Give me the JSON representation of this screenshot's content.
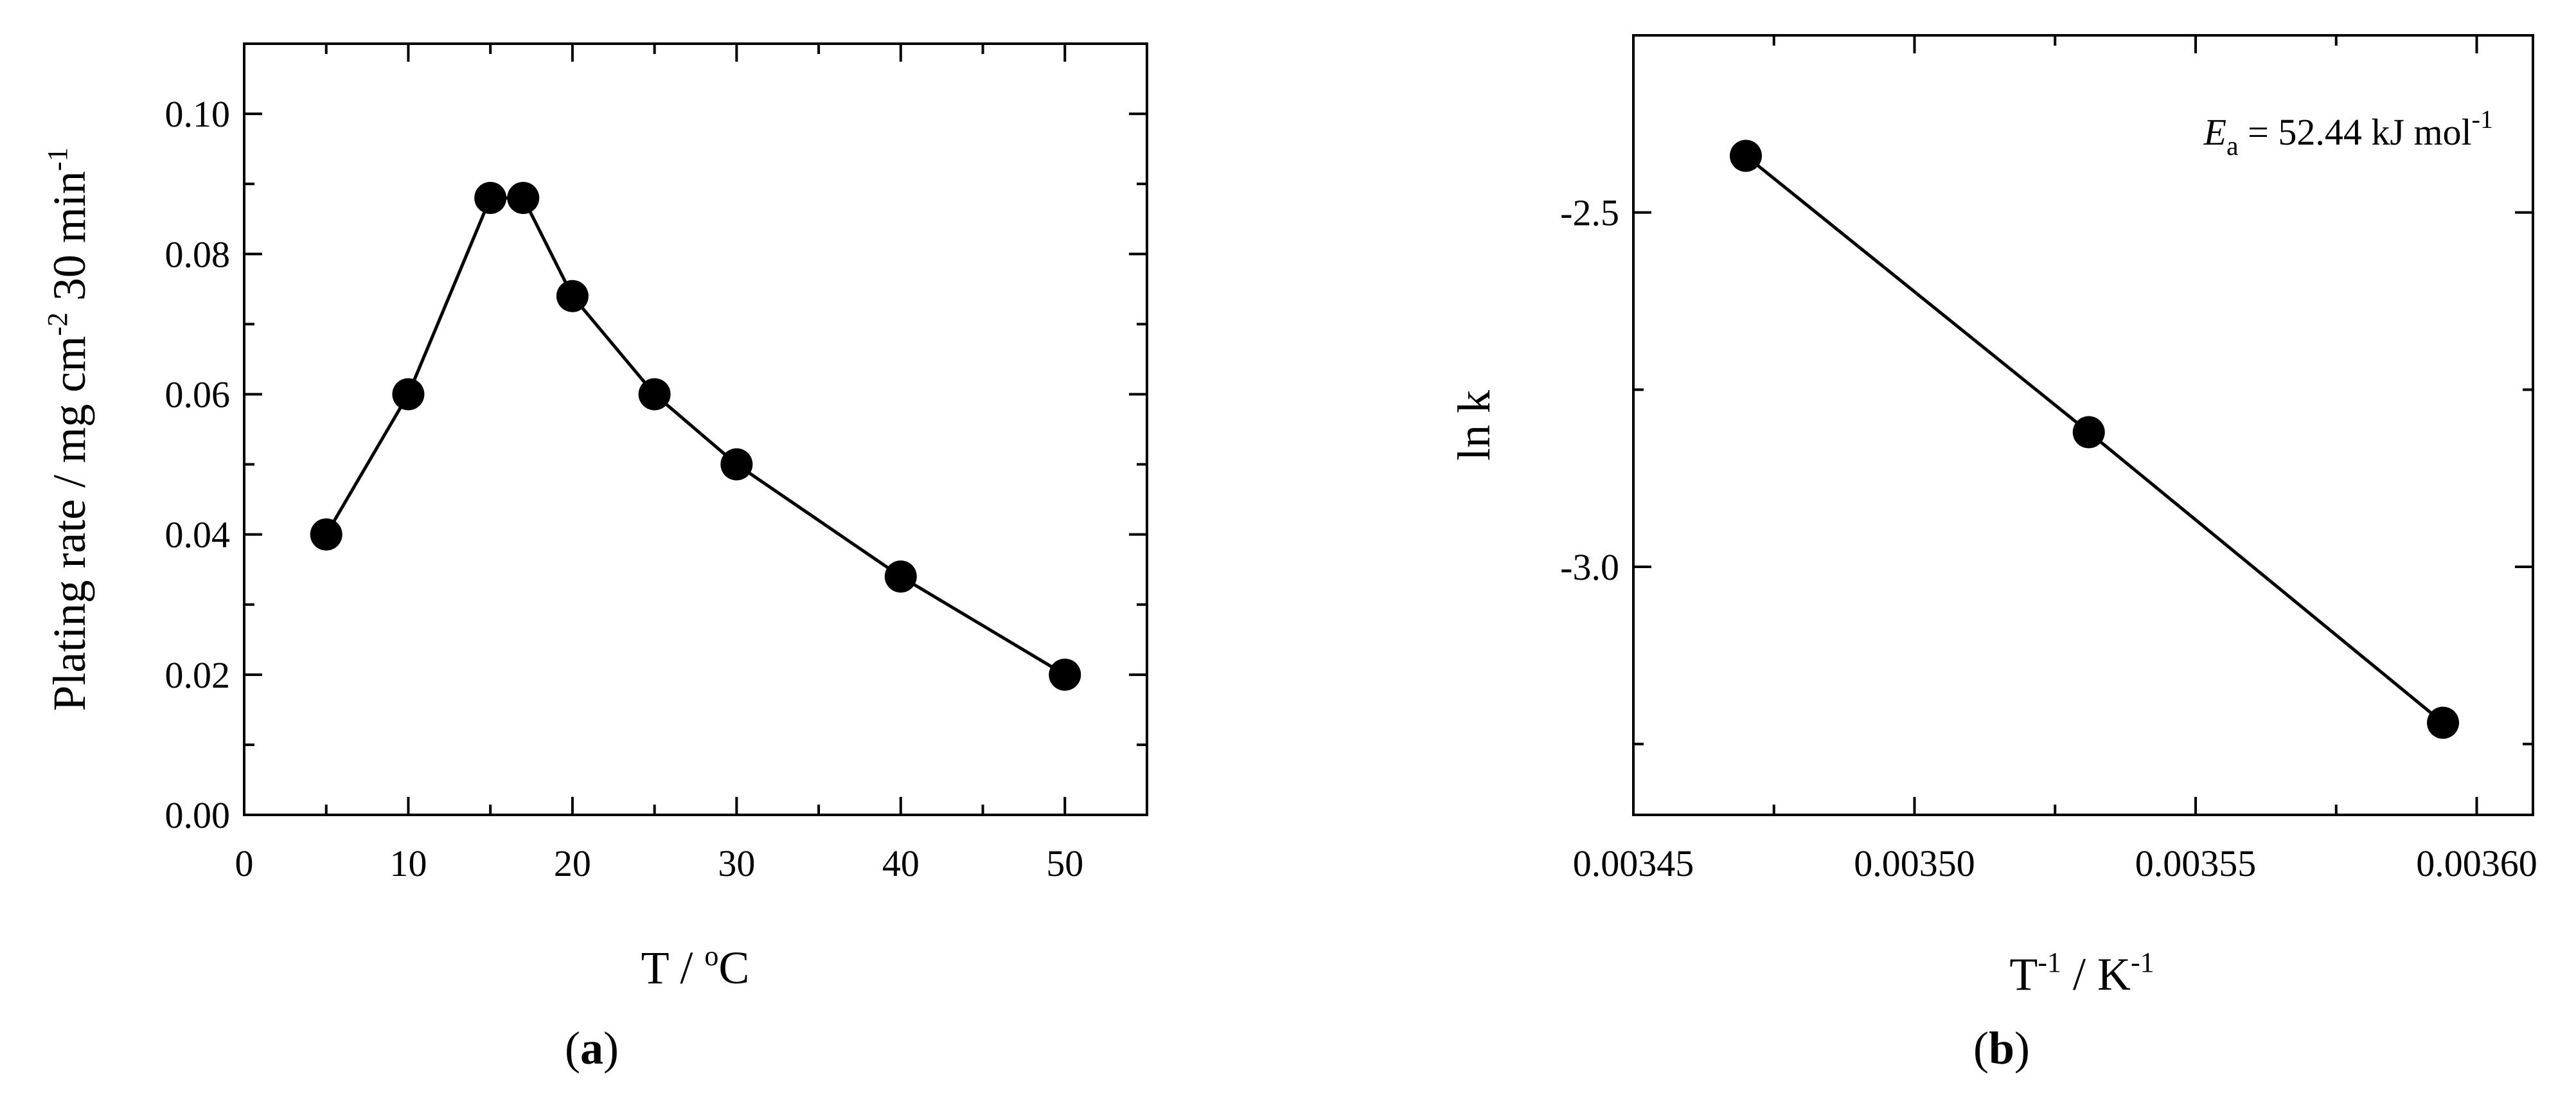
{
  "chart_data": [
    {
      "type": "line",
      "panel_label": "(a)",
      "xlabel": "T / °C",
      "ylabel": "Plating rate / mg cm-2 30 min-1",
      "xlim": [
        0,
        55
      ],
      "ylim": [
        0,
        0.11
      ],
      "x_ticks": [
        "0",
        "10",
        "20",
        "30",
        "40",
        "50"
      ],
      "y_ticks": [
        "0.00",
        "0.02",
        "0.04",
        "0.06",
        "0.08",
        "0.10"
      ],
      "grid": false,
      "series": [
        {
          "x": [
            5,
            10,
            15,
            17,
            20,
            25,
            30,
            40,
            50
          ],
          "y": [
            0.04,
            0.06,
            0.088,
            0.088,
            0.074,
            0.06,
            0.05,
            0.034,
            0.02
          ]
        }
      ]
    },
    {
      "type": "line",
      "panel_label": "(b)",
      "xlabel": "T-1 / K-1",
      "ylabel": "ln k",
      "xlim": [
        0.00345,
        0.00361
      ],
      "ylim": [
        -3.35,
        -2.25
      ],
      "x_ticks": [
        "0.00345",
        "0.00350",
        "0.00355",
        "0.00360"
      ],
      "y_ticks": [
        "-2.5",
        "-3.0"
      ],
      "grid": false,
      "annotation": "Ea = 52.44 kJ mol-1",
      "series": [
        {
          "x": [
            0.00347,
            0.003531,
            0.003594
          ],
          "y": [
            -2.42,
            -2.81,
            -3.22
          ]
        }
      ]
    }
  ],
  "text": {
    "a_xlabel_main": "T / ",
    "a_xlabel_sup": "o",
    "a_xlabel_unit": "C",
    "a_ylabel_main": "Plating rate / mg cm",
    "a_ylabel_sup1": "-2",
    "a_ylabel_mid": " 30 min",
    "a_ylabel_sup2": "-1",
    "a_panel_open": "(",
    "a_panel_letter": "a",
    "a_panel_close": ")",
    "b_xlabel_t": "T",
    "b_xlabel_sup1": "-1",
    "b_xlabel_mid": " / K",
    "b_xlabel_sup2": "-1",
    "b_ylabel": "ln k",
    "b_panel_open": "(",
    "b_panel_letter": "b",
    "b_panel_close": ")",
    "b_annot_e": "E",
    "b_annot_sub": "a",
    "b_annot_mid": " = 52.44 kJ mol",
    "b_annot_sup": "-1"
  }
}
